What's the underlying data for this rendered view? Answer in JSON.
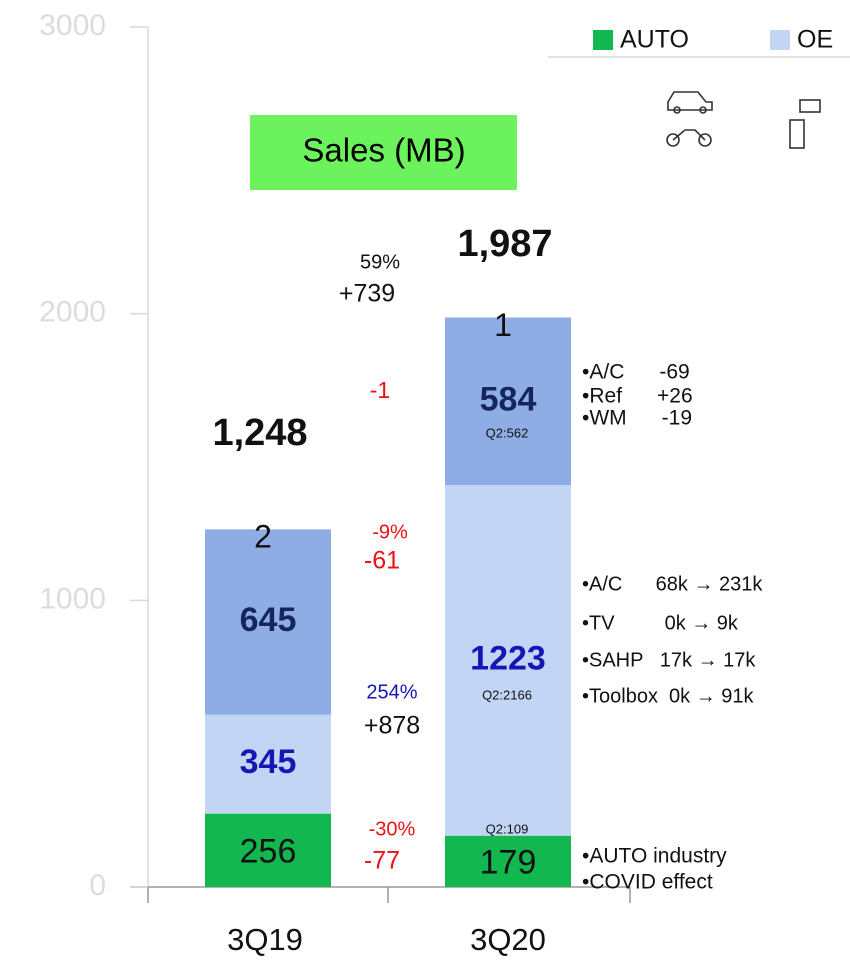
{
  "chart_data": {
    "type": "stacked_bar",
    "title": "Sales (MB)",
    "categories": [
      "3Q19",
      "3Q20"
    ],
    "series": [
      {
        "name": "AUTO",
        "color": "#12b84f",
        "values": [
          256,
          179
        ]
      },
      {
        "name": "OE",
        "color": "#c3d5f4",
        "values": [
          345,
          1223
        ]
      },
      {
        "color": "#8eade5",
        "values": [
          645,
          584
        ]
      },
      {
        "color": "#8eade5",
        "values": [
          2,
          1
        ]
      }
    ],
    "ylim": [
      0,
      3000
    ],
    "yticks": [
      0,
      1000,
      2000,
      3000
    ],
    "annotations": [
      "1,248",
      "1,987",
      "59%",
      "+739",
      "-1",
      "-9%",
      "-61",
      "254%",
      "+878",
      "-30%",
      "-77",
      "Q2:562",
      "Q2:2166",
      "Q2:109",
      "•A/C      -69",
      "•Ref      +26",
      "•WM      -19",
      "•A/C      68k → 231k",
      "•TV         0k → 9k",
      "•SAHP   17k → 17k",
      "•Toolbox  0k → 91k",
      "•AUTO industry",
      "•COVID effect"
    ]
  }
}
